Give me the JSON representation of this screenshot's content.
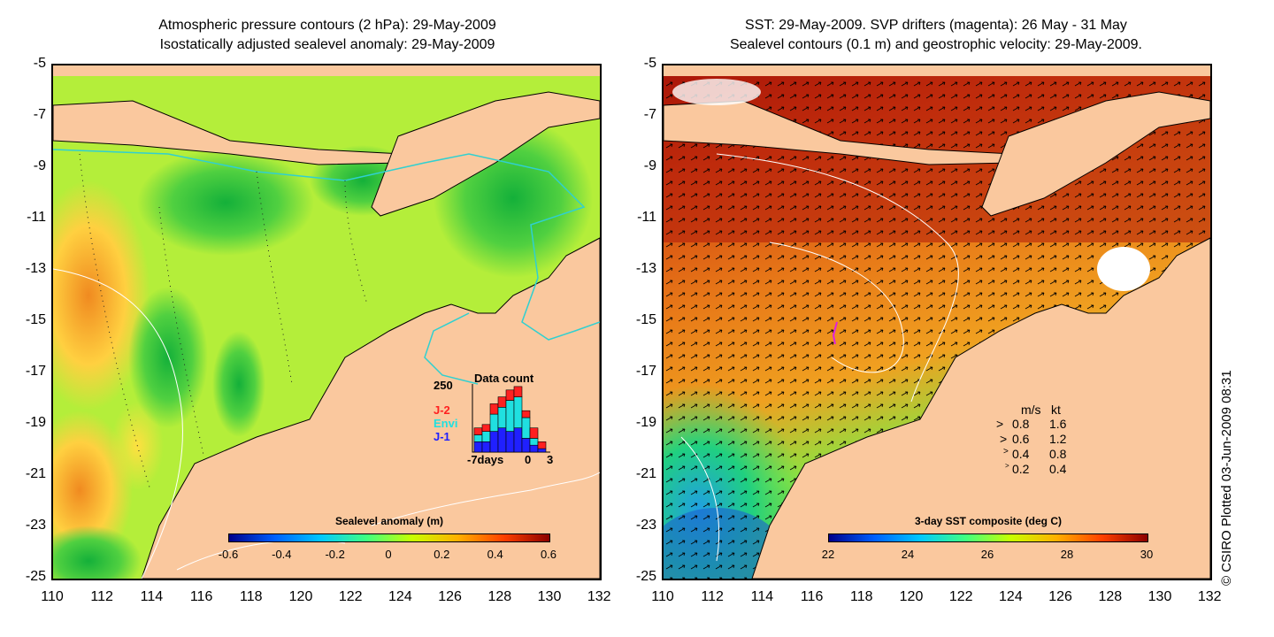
{
  "left_panel": {
    "title_line1": "Atmospheric pressure contours (2 hPa): 29-May-2009",
    "title_line2": "Isostatically adjusted sealevel anomaly: 29-May-2009",
    "colorbar": {
      "title": "Sealevel anomaly (m)",
      "ticks": [
        "-0.6",
        "-0.4",
        "-0.2",
        "0",
        "0.2",
        "0.4",
        "0.6"
      ],
      "colors": [
        "#00008b",
        "#0060ff",
        "#00c8ff",
        "#40ff80",
        "#c8ff00",
        "#ffb000",
        "#ff4000",
        "#8b0000"
      ]
    },
    "histogram": {
      "title": "Data count",
      "ymax_label": "250",
      "xlabel_left": "-7days",
      "xlabel_zero": "0",
      "xlabel_right": "3",
      "legend": [
        {
          "label": "J-2",
          "color": "#ff2020"
        },
        {
          "label": "Envi",
          "color": "#20e0e0"
        },
        {
          "label": "J-1",
          "color": "#2020ff"
        }
      ],
      "bars": [
        {
          "j1": 0.15,
          "envi": 0.1,
          "j2": 0.1
        },
        {
          "j1": 0.15,
          "envi": 0.15,
          "j2": 0.1
        },
        {
          "j1": 0.3,
          "envi": 0.25,
          "j2": 0.15
        },
        {
          "j1": 0.35,
          "envi": 0.3,
          "j2": 0.15
        },
        {
          "j1": 0.3,
          "envi": 0.45,
          "j2": 0.15
        },
        {
          "j1": 0.35,
          "envi": 0.45,
          "j2": 0.15
        },
        {
          "j1": 0.2,
          "envi": 0.3,
          "j2": 0.1
        },
        {
          "j1": 0.1,
          "envi": 0.1,
          "j2": 0.15
        },
        {
          "j1": 0.05,
          "envi": 0.0,
          "j2": 0.1
        }
      ]
    }
  },
  "right_panel": {
    "title_line1": "SST: 29-May-2009. SVP drifters (magenta): 26 May - 31 May",
    "title_line2": "Sealevel contours (0.1 m) and geostrophic velocity: 29-May-2009.",
    "colorbar": {
      "title": "3-day SST composite (deg C)",
      "ticks": [
        "22",
        "24",
        "26",
        "28",
        "30"
      ],
      "colors": [
        "#00008b",
        "#0060ff",
        "#00c8ff",
        "#40ff80",
        "#c8ff00",
        "#ffb000",
        "#ff4000",
        "#8b0000"
      ]
    },
    "speed_legend": {
      "header_ms": "m/s",
      "header_kt": "kt",
      "rows": [
        {
          "ms": "0.8",
          "kt": "1.6"
        },
        {
          "ms": "0.6",
          "kt": "1.2"
        },
        {
          "ms": "0.4",
          "kt": "0.8"
        },
        {
          "ms": "0.2",
          "kt": "0.4"
        }
      ]
    }
  },
  "axes": {
    "y_ticks": [
      "-5",
      "-7",
      "-9",
      "-11",
      "-13",
      "-15",
      "-17",
      "-19",
      "-21",
      "-23",
      "-25"
    ],
    "x_ticks": [
      "110",
      "112",
      "114",
      "116",
      "118",
      "120",
      "122",
      "124",
      "126",
      "128",
      "130",
      "132"
    ]
  },
  "copyright": "© CSIRO Plotted 03-Jun-2009 08:31",
  "colors": {
    "land": "#fac89e",
    "ssa_background": "#b4ee3a",
    "sst_warm": "#b81a0a",
    "sst_mid": "#e8701a",
    "sst_cool": "#30d060"
  }
}
